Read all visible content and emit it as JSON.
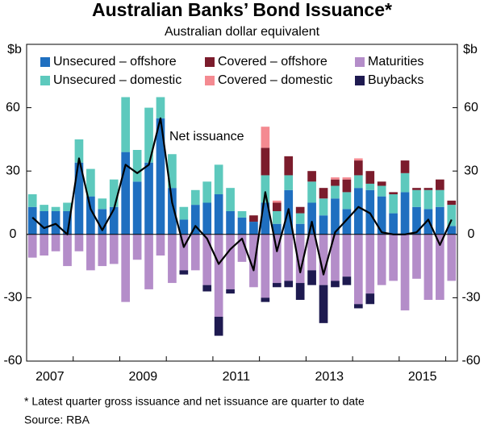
{
  "chart_data": {
    "type": "bar",
    "title": "Australian Banks’ Bond Issuance*",
    "subtitle": "Australian dollar equivalent",
    "ylabel": "$b",
    "y2label": "$b",
    "x": [
      2007.125,
      2007.375,
      2007.625,
      2007.875,
      2008.125,
      2008.375,
      2008.625,
      2008.875,
      2009.125,
      2009.375,
      2009.625,
      2009.875,
      2010.125,
      2010.375,
      2010.625,
      2010.875,
      2011.125,
      2011.375,
      2011.625,
      2011.875,
      2012.125,
      2012.375,
      2012.625,
      2012.875,
      2013.125,
      2013.375,
      2013.625,
      2013.875,
      2014.125,
      2014.375,
      2014.625,
      2014.875,
      2015.125,
      2015.375,
      2015.625,
      2015.875,
      2016.125
    ],
    "xlim": [
      2007,
      2016.25
    ],
    "xticks": [
      {
        "value": 2007.5,
        "label": "2007"
      },
      {
        "value": 2009.5,
        "label": "2009"
      },
      {
        "value": 2011.5,
        "label": "2011"
      },
      {
        "value": 2013.5,
        "label": "2013"
      },
      {
        "value": 2015.5,
        "label": "2015"
      }
    ],
    "ylim": [
      -60,
      90
    ],
    "yticks": [
      -60,
      -30,
      0,
      30,
      60
    ],
    "y2lim": [
      -60,
      90
    ],
    "y2ticks": [
      -60,
      -30,
      0,
      30,
      60
    ],
    "grid": false,
    "series": [
      {
        "name": "Unsecured – offshore",
        "color": "#1f6fc0",
        "sign": "positive",
        "values": [
          13,
          11,
          11,
          11,
          34,
          18,
          12,
          13,
          39,
          25,
          34,
          55,
          22,
          7,
          14,
          15,
          19,
          11,
          8,
          6,
          15,
          5,
          21,
          5,
          15,
          9,
          17,
          12,
          22,
          21,
          18,
          10,
          20,
          13,
          12,
          13,
          4
        ]
      },
      {
        "name": "Unsecured – domestic",
        "color": "#5dc9bd",
        "sign": "positive",
        "values": [
          6,
          3,
          2,
          4,
          11,
          13,
          5,
          13,
          26,
          15,
          26,
          10,
          16,
          6,
          7,
          10,
          14,
          11,
          3,
          0,
          13,
          6,
          7,
          5,
          10,
          8,
          6,
          8,
          6,
          3,
          5,
          9,
          9,
          8,
          9,
          8,
          10
        ]
      },
      {
        "name": "Covered – offshore",
        "color": "#7b1c2c",
        "sign": "positive",
        "values": [
          0,
          0,
          0,
          0,
          0,
          0,
          0,
          0,
          0,
          0,
          0,
          0,
          0,
          0,
          0,
          0,
          0,
          0,
          0,
          3,
          13,
          4,
          9,
          3,
          5,
          5,
          3,
          6,
          7,
          6,
          2,
          1,
          6,
          1,
          1,
          5,
          2
        ]
      },
      {
        "name": "Covered – domestic",
        "color": "#f48a91",
        "sign": "positive",
        "values": [
          0,
          0,
          0,
          0,
          0,
          0,
          0,
          0,
          0,
          0,
          0,
          0,
          0,
          0,
          0,
          0,
          0,
          0,
          0,
          0,
          10,
          1,
          0,
          0,
          0,
          0,
          1,
          1,
          1,
          0,
          0,
          0,
          0,
          0,
          0,
          0,
          0
        ]
      },
      {
        "name": "Maturities",
        "color": "#b48dc9",
        "sign": "negative",
        "values": [
          -11,
          -10,
          -8,
          -15,
          -8,
          -17,
          -15,
          -14,
          -32,
          -12,
          -26,
          -10,
          -23,
          -17,
          -17,
          -24,
          -39,
          -26,
          -13,
          -25,
          -30,
          -23,
          -22,
          -23,
          -17,
          -24,
          -22,
          -20,
          -33,
          -28,
          -24,
          -22,
          -36,
          -21,
          -31,
          -31,
          -22
        ]
      },
      {
        "name": "Buybacks",
        "color": "#1e1a50",
        "sign": "negative",
        "values": [
          0,
          0,
          0,
          0,
          0,
          0,
          0,
          0,
          0,
          0,
          0,
          0,
          0,
          -2,
          0,
          -3,
          -9,
          -2,
          0,
          0,
          -2,
          -2,
          -3,
          -8,
          -7,
          -18,
          -3,
          -4,
          -2,
          -5,
          0,
          0,
          0,
          0,
          0,
          0,
          0
        ]
      },
      {
        "name": "Net issuance",
        "color": "#000000",
        "type": "line",
        "values": [
          8,
          3,
          5,
          0,
          36,
          12,
          2,
          12,
          33,
          29,
          33,
          55,
          15,
          -6,
          4,
          -2,
          -14,
          -7,
          -2,
          -17,
          20,
          -8,
          12,
          -18,
          6,
          -19,
          1,
          7,
          13,
          10,
          1,
          0,
          0,
          1,
          7,
          -5,
          7
        ]
      }
    ],
    "footnote": "*     Latest quarter gross issuance and net issuance are quarter to date",
    "source": "Source:     RBA"
  }
}
